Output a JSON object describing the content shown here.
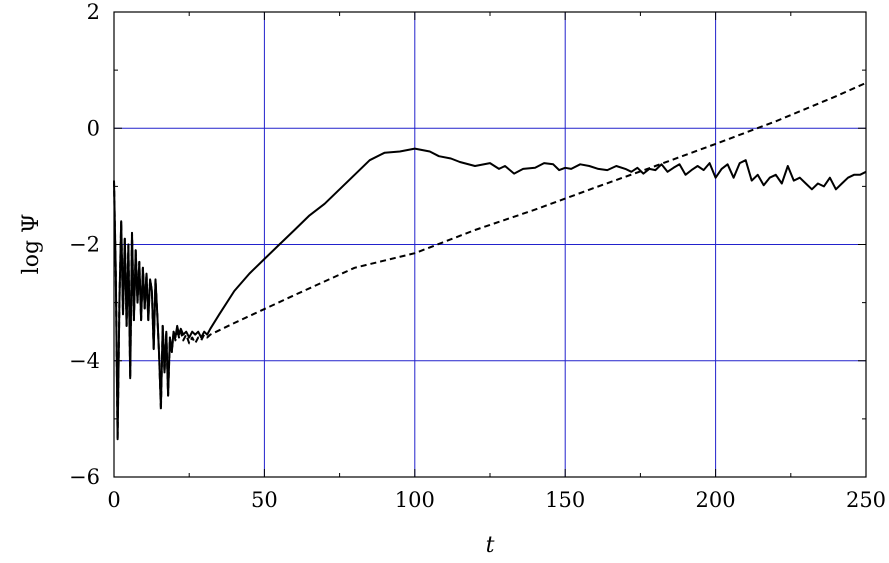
{
  "chart_data": {
    "type": "line",
    "title": "",
    "xlabel": "t",
    "ylabel": "log Ψ",
    "xlim": [
      0,
      250
    ],
    "ylim": [
      -6,
      2
    ],
    "xticks": [
      0,
      50,
      100,
      150,
      200,
      250
    ],
    "yticks": [
      -6,
      -4,
      -2,
      0,
      2
    ],
    "xtick_labels": [
      "0",
      "50",
      "100",
      "150",
      "200",
      "250"
    ],
    "ytick_labels": [
      "−6",
      "−4",
      "−2",
      "0",
      "2"
    ],
    "grid": true,
    "grid_color": "#2222cc",
    "series": [
      {
        "style": "solid",
        "color": "#000000",
        "x": [
          0,
          0.6,
          1.2,
          1.8,
          2.4,
          3.0,
          3.6,
          4.2,
          4.8,
          5.4,
          6.0,
          6.6,
          7.2,
          7.8,
          8.4,
          9.0,
          9.6,
          10.2,
          10.8,
          11.4,
          12.0,
          12.6,
          13.2,
          13.8,
          14.4,
          15.0,
          15.6,
          16.2,
          16.8,
          17.4,
          18.0,
          18.6,
          19.2,
          19.8,
          20.4,
          21.0,
          21.6,
          22.2,
          23,
          24,
          25,
          26,
          27,
          28,
          29,
          30,
          31,
          32,
          35,
          40,
          45,
          50,
          55,
          60,
          65,
          70,
          75,
          80,
          85,
          90,
          95,
          100,
          105,
          108,
          112,
          115,
          120,
          125,
          128,
          130,
          133,
          136,
          140,
          143,
          146,
          148,
          150,
          152,
          155,
          158,
          161,
          164,
          167,
          170,
          172,
          174,
          176,
          178,
          180,
          182,
          184,
          186,
          188,
          190,
          192,
          194,
          196,
          198,
          200,
          202,
          204,
          206,
          208,
          210,
          212,
          214,
          216,
          218,
          220,
          222,
          224,
          226,
          228,
          230,
          232,
          234,
          236,
          238,
          240,
          242,
          244,
          246,
          248,
          250
        ],
        "y": [
          -0.9,
          -2.5,
          -5.35,
          -3.0,
          -1.6,
          -3.2,
          -1.9,
          -3.4,
          -2.0,
          -4.3,
          -1.8,
          -3.3,
          -2.1,
          -3.0,
          -2.3,
          -3.3,
          -2.4,
          -3.1,
          -2.5,
          -3.3,
          -2.6,
          -2.8,
          -3.8,
          -2.6,
          -3.2,
          -3.9,
          -4.8,
          -3.4,
          -4.2,
          -3.5,
          -4.6,
          -3.6,
          -3.85,
          -3.5,
          -3.6,
          -3.4,
          -3.55,
          -3.45,
          -3.55,
          -3.5,
          -3.6,
          -3.5,
          -3.55,
          -3.5,
          -3.6,
          -3.5,
          -3.55,
          -3.45,
          -3.2,
          -2.8,
          -2.5,
          -2.25,
          -2.0,
          -1.75,
          -1.5,
          -1.3,
          -1.05,
          -0.8,
          -0.55,
          -0.42,
          -0.4,
          -0.35,
          -0.4,
          -0.48,
          -0.52,
          -0.58,
          -0.65,
          -0.6,
          -0.7,
          -0.65,
          -0.78,
          -0.7,
          -0.68,
          -0.6,
          -0.62,
          -0.72,
          -0.68,
          -0.7,
          -0.62,
          -0.65,
          -0.7,
          -0.72,
          -0.65,
          -0.7,
          -0.75,
          -0.68,
          -0.78,
          -0.7,
          -0.72,
          -0.62,
          -0.75,
          -0.68,
          -0.62,
          -0.8,
          -0.72,
          -0.65,
          -0.72,
          -0.6,
          -0.85,
          -0.7,
          -0.62,
          -0.85,
          -0.6,
          -0.55,
          -0.9,
          -0.8,
          -0.98,
          -0.85,
          -0.8,
          -0.95,
          -0.65,
          -0.9,
          -0.85,
          -0.95,
          -1.05,
          -0.95,
          -1.0,
          -0.85,
          -1.05,
          -0.95,
          -0.85,
          -0.8,
          -0.8,
          -0.75
        ]
      },
      {
        "style": "dashed",
        "color": "#000000",
        "x": [
          0,
          0.6,
          1.2,
          1.8,
          2.4,
          3.0,
          3.6,
          4.2,
          4.8,
          5.4,
          6.0,
          6.6,
          7.2,
          7.8,
          8.4,
          9.0,
          9.6,
          10.2,
          10.8,
          11.4,
          12.0,
          12.6,
          13.2,
          13.8,
          14.4,
          15.0,
          15.6,
          16.2,
          16.8,
          17.4,
          18.0,
          18.6,
          19.2,
          19.8,
          20.4,
          21.0,
          21.6,
          22.2,
          23,
          24,
          25,
          26,
          27,
          28,
          29,
          30,
          31,
          32,
          40,
          60,
          80,
          100,
          120,
          140,
          160,
          180,
          200,
          220,
          240,
          250
        ],
        "y": [
          -0.9,
          -2.5,
          -5.35,
          -3.0,
          -1.6,
          -3.2,
          -1.9,
          -3.4,
          -2.0,
          -4.3,
          -1.8,
          -3.3,
          -2.1,
          -3.0,
          -2.3,
          -3.3,
          -2.4,
          -3.1,
          -2.5,
          -3.3,
          -2.6,
          -2.8,
          -3.8,
          -2.6,
          -3.2,
          -3.9,
          -4.85,
          -3.4,
          -4.2,
          -3.5,
          -4.6,
          -3.6,
          -3.85,
          -3.5,
          -3.65,
          -3.45,
          -3.6,
          -3.5,
          -3.65,
          -3.55,
          -3.7,
          -3.6,
          -3.7,
          -3.6,
          -3.65,
          -3.55,
          -3.6,
          -3.55,
          -3.35,
          -2.87,
          -2.4,
          -2.15,
          -1.75,
          -1.4,
          -1.02,
          -0.65,
          -0.27,
          0.12,
          0.55,
          0.78
        ]
      }
    ]
  }
}
